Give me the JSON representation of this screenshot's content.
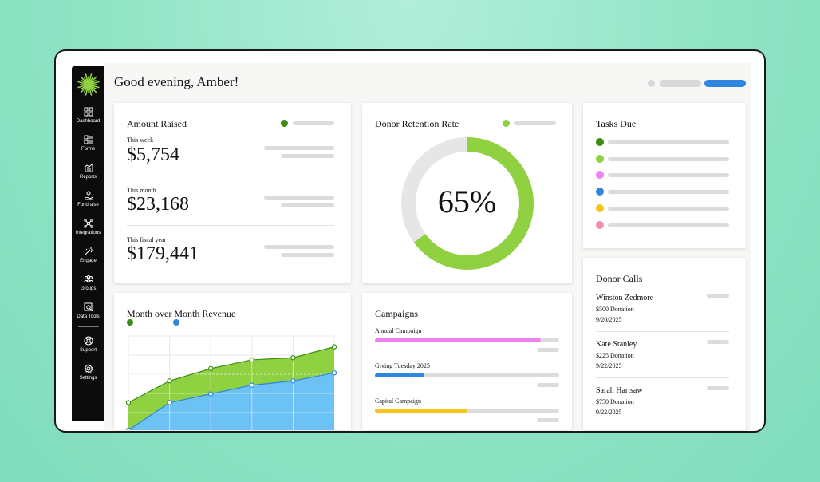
{
  "greeting": "Good evening, Amber!",
  "sidebar": {
    "items": [
      {
        "label": "Dashboard",
        "icon": "dashboard-icon"
      },
      {
        "label": "Forms",
        "icon": "forms-icon"
      },
      {
        "label": "Reports",
        "icon": "reports-icon"
      },
      {
        "label": "Fundraise",
        "icon": "fundraise-icon"
      },
      {
        "label": "Integrations",
        "icon": "integrations-icon"
      },
      {
        "label": "Engage",
        "icon": "engage-icon"
      },
      {
        "label": "Groups",
        "icon": "groups-icon"
      },
      {
        "label": "Data Tools",
        "icon": "data-tools-icon"
      }
    ],
    "bottom_items": [
      {
        "label": "Support",
        "icon": "support-icon"
      },
      {
        "label": "Settings",
        "icon": "settings-icon"
      }
    ]
  },
  "amount_raised": {
    "title": "Amount Raised",
    "rows": [
      {
        "label": "This week",
        "value": "$5,754"
      },
      {
        "label": "This month",
        "value": "$23,168"
      },
      {
        "label": "This fiscal year",
        "value": "$179,441"
      }
    ]
  },
  "retention": {
    "title": "Donor Retention Rate",
    "value_text": "65%",
    "fraction": 0.65
  },
  "tasks": {
    "title": "Tasks Due",
    "colors": [
      "#3a8c12",
      "#8fd141",
      "#ee82ee",
      "#2f86e0",
      "#f5c518",
      "#f28ab2"
    ]
  },
  "revenue": {
    "title": "Month over Month Revenue"
  },
  "campaigns": {
    "title": "Campaigns",
    "items": [
      {
        "label": "Annual Campaign",
        "progress": 0.9,
        "color": "#ee82ee"
      },
      {
        "label": "Giving Tuesday 2025",
        "progress": 0.27,
        "color": "#2f86e0"
      },
      {
        "label": "Capital Campaign",
        "progress": 0.5,
        "color": "#f5c518"
      }
    ]
  },
  "donor_calls": {
    "title": "Donor Calls",
    "items": [
      {
        "name": "Winston Zedmore",
        "donation": "$500 Donation",
        "date": "9/20/2025"
      },
      {
        "name": "Kate Stanley",
        "donation": "$225 Donation",
        "date": "9/22/2025"
      },
      {
        "name": "Sarah Hartsaw",
        "donation": "$750 Donation",
        "date": "9/22/2025"
      }
    ]
  },
  "chart_data": {
    "type": "area",
    "title": "Month over Month Revenue",
    "xlabel": "",
    "ylabel": "",
    "grid": true,
    "series": [
      {
        "color": "#3a8c12",
        "values": [
          38,
          68,
          85,
          97,
          100,
          115
        ]
      },
      {
        "color": "#2f86e0",
        "values": [
          0,
          38,
          50,
          62,
          68,
          79
        ]
      }
    ]
  }
}
